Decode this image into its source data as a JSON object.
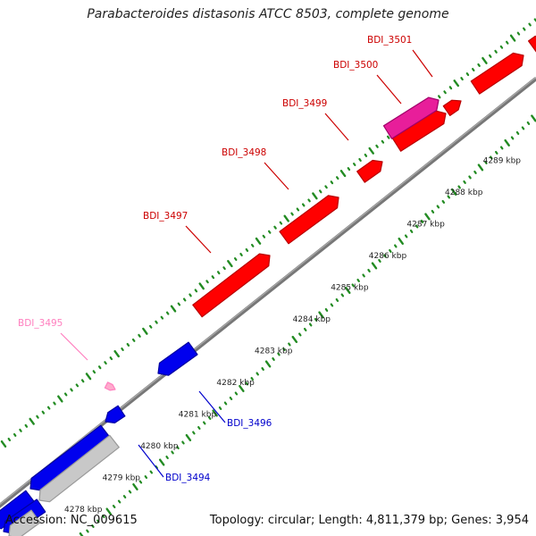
{
  "title": "Parabacteroides distasonis ATCC 8503, complete genome",
  "accession_text": "Accession: NC_009615",
  "summary_text": "Topology: circular; Length: 4,811,379 bp; Genes: 3,954",
  "colors": {
    "forward_gene": "#ff0000",
    "forward_gene_dark": "#b80000",
    "highlight_gene": "#e81e9a",
    "reverse_gene": "#0000ee",
    "reverse_gene_dark": "#0000a0",
    "other_gene": "#c8c8c8",
    "backbone": "#777777",
    "tick_dots": "#228b22",
    "forward_label": "#cc0000",
    "reverse_label": "#0000cc",
    "pink_label": "#ff7fbf",
    "scale_label": "#222222"
  },
  "scale_ticks": [
    "4278 kbp",
    "4279 kbp",
    "4280 kbp",
    "4281 kbp",
    "4282 kbp",
    "4283 kbp",
    "4284 kbp",
    "4285 kbp",
    "4286 kbp",
    "4287 kbp",
    "4288 kbp",
    "4289 kbp"
  ],
  "gene_labels": [
    {
      "name": "BDI_3501",
      "color_key": "forward_label"
    },
    {
      "name": "BDI_3500",
      "color_key": "forward_label"
    },
    {
      "name": "BDI_3499",
      "color_key": "forward_label"
    },
    {
      "name": "BDI_3498",
      "color_key": "forward_label"
    },
    {
      "name": "BDI_3497",
      "color_key": "forward_label"
    },
    {
      "name": "BDI_3495",
      "color_key": "pink_label"
    },
    {
      "name": "BDI_3496",
      "color_key": "reverse_label"
    },
    {
      "name": "BDI_3494",
      "color_key": "reverse_label"
    }
  ]
}
